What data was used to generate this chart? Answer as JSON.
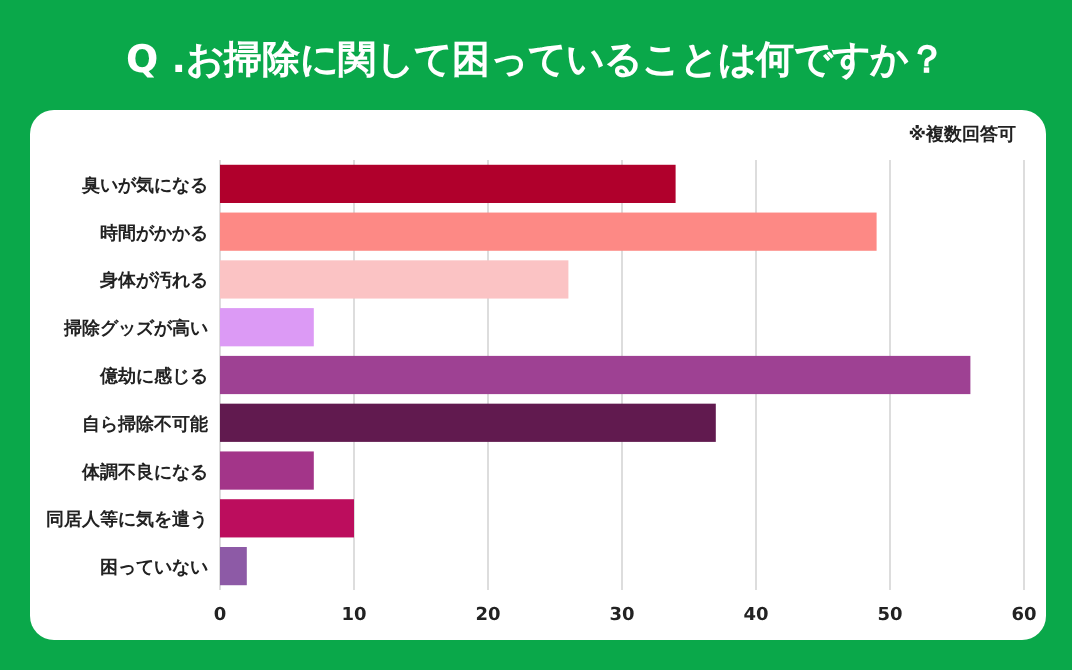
{
  "chart_data": {
    "type": "bar",
    "orientation": "horizontal",
    "title": "Q .お掃除に関して困っていることは何ですか？",
    "annotations": [
      "※複数回答可"
    ],
    "categories": [
      "臭いが気になる",
      "時間がかかる",
      "身体が汚れる",
      "掃除グッズが高い",
      "億劫に感じる",
      "自ら掃除不可能",
      "体調不良になる",
      "同居人等に気を遣う",
      "困っていない"
    ],
    "values": [
      34,
      49,
      26,
      7,
      56,
      37,
      7,
      10,
      2
    ],
    "colors": [
      "#b0002c",
      "#fd8985",
      "#fbc3c4",
      "#dc9af5",
      "#9e4193",
      "#611a4f",
      "#a33589",
      "#bc0d5d",
      "#8d5aa6"
    ],
    "xlim": [
      0,
      60
    ],
    "xticks": [
      0,
      10,
      20,
      30,
      40,
      50,
      60
    ],
    "grid": "x"
  }
}
